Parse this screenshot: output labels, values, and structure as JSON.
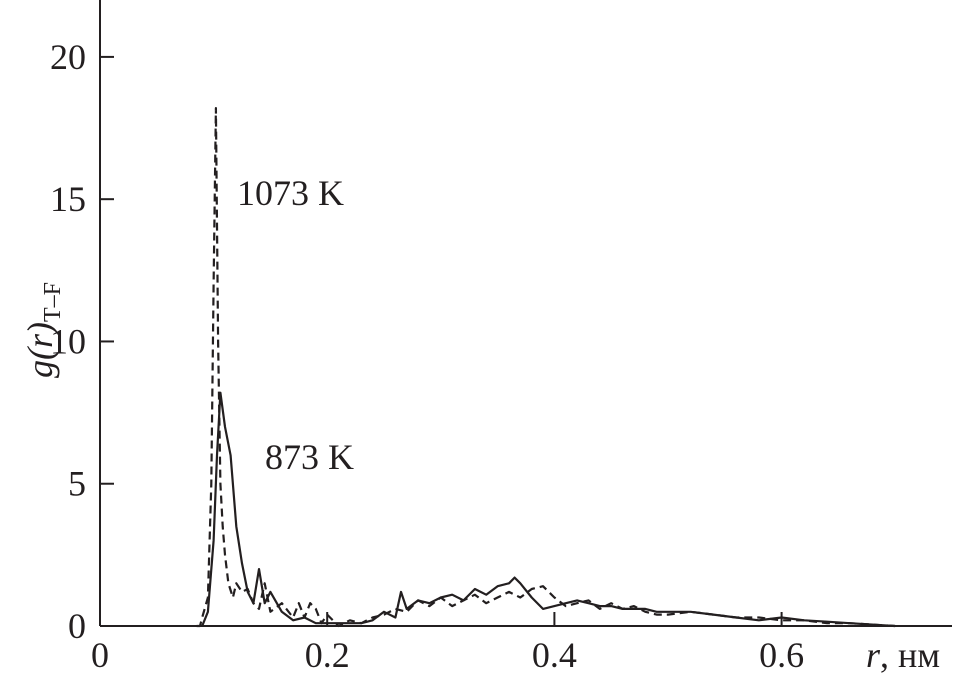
{
  "chart_data": {
    "type": "line",
    "ylabel": "g(r)",
    "ylabel_subscript": "T–F",
    "xlabel": "r",
    "xlabel_unit": ", нм",
    "xlim": [
      0,
      0.75
    ],
    "ylim": [
      0,
      22
    ],
    "xticks": [
      0,
      0.2,
      0.4,
      0.6
    ],
    "yticks": [
      0,
      5,
      10,
      15,
      20
    ],
    "series": [
      {
        "name": "1073 K",
        "color": "#231f20",
        "dash": true,
        "x": [
          0.085,
          0.088,
          0.09,
          0.095,
          0.098,
          0.1,
          0.102,
          0.104,
          0.106,
          0.108,
          0.11,
          0.113,
          0.117,
          0.12,
          0.125,
          0.13,
          0.135,
          0.14,
          0.145,
          0.15,
          0.16,
          0.17,
          0.175,
          0.18,
          0.185,
          0.19,
          0.195,
          0.2,
          0.21,
          0.22,
          0.23,
          0.24,
          0.25,
          0.26,
          0.27,
          0.28,
          0.29,
          0.3,
          0.31,
          0.32,
          0.33,
          0.34,
          0.35,
          0.36,
          0.37,
          0.38,
          0.39,
          0.4,
          0.41,
          0.42,
          0.43,
          0.44,
          0.45,
          0.46,
          0.47,
          0.48,
          0.49,
          0.5,
          0.52,
          0.54,
          0.56,
          0.58,
          0.6,
          0.62,
          0.64,
          0.66,
          0.68,
          0.7
        ],
        "values": [
          0,
          0,
          0.3,
          1,
          5,
          12,
          18.2,
          10,
          5,
          3.5,
          2.5,
          1.5,
          1,
          1.5,
          1.2,
          1.3,
          0.8,
          0.6,
          1.5,
          0.5,
          0.8,
          0.3,
          0.8,
          0.3,
          0.8,
          0.6,
          0.1,
          0.4,
          0,
          0.2,
          0.1,
          0.3,
          0.4,
          0.6,
          0.5,
          0.9,
          0.7,
          1,
          0.7,
          0.9,
          1.1,
          0.8,
          1,
          1.2,
          1,
          1.3,
          1.4,
          1,
          0.7,
          0.8,
          0.9,
          0.6,
          0.8,
          0.6,
          0.7,
          0.5,
          0.4,
          0.4,
          0.5,
          0.4,
          0.3,
          0.3,
          0.2,
          0.2,
          0.1,
          0.1,
          0.05,
          0
        ]
      },
      {
        "name": "873 K",
        "color": "#231f20",
        "dash": false,
        "x": [
          0.09,
          0.095,
          0.1,
          0.103,
          0.106,
          0.11,
          0.115,
          0.12,
          0.125,
          0.13,
          0.135,
          0.14,
          0.145,
          0.15,
          0.16,
          0.17,
          0.18,
          0.19,
          0.2,
          0.21,
          0.22,
          0.23,
          0.24,
          0.25,
          0.26,
          0.265,
          0.27,
          0.28,
          0.29,
          0.3,
          0.31,
          0.32,
          0.33,
          0.34,
          0.35,
          0.36,
          0.365,
          0.37,
          0.38,
          0.39,
          0.4,
          0.41,
          0.42,
          0.43,
          0.44,
          0.45,
          0.46,
          0.47,
          0.48,
          0.49,
          0.5,
          0.52,
          0.54,
          0.56,
          0.58,
          0.6,
          0.62,
          0.64,
          0.66,
          0.68,
          0.7
        ],
        "values": [
          0,
          0.5,
          3,
          6,
          8.2,
          7,
          6,
          3.5,
          2.2,
          1.2,
          0.8,
          2,
          0.8,
          1.2,
          0.5,
          0.2,
          0.3,
          0.1,
          0.1,
          0.1,
          0.1,
          0.1,
          0.2,
          0.5,
          0.3,
          1.2,
          0.6,
          0.9,
          0.8,
          1,
          1.1,
          0.9,
          1.3,
          1.1,
          1.4,
          1.5,
          1.7,
          1.5,
          1,
          0.6,
          0.7,
          0.8,
          0.9,
          0.8,
          0.7,
          0.7,
          0.6,
          0.6,
          0.6,
          0.5,
          0.5,
          0.5,
          0.4,
          0.3,
          0.2,
          0.3,
          0.2,
          0.15,
          0.1,
          0.05,
          0
        ]
      }
    ]
  }
}
